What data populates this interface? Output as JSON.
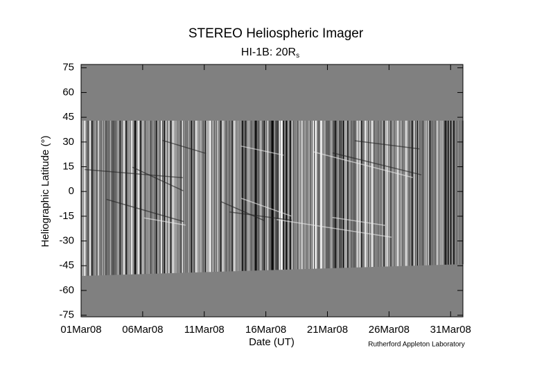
{
  "chart_data": {
    "type": "image",
    "title": "STEREO Heliospheric Imager",
    "subtitle": "HI-1B: 20R",
    "subtitle_sub": "s",
    "x_label": "Date (UT)",
    "y_label": "Heliographic Latitude (°)",
    "credit": "Rutherford Appleton Laboratory",
    "xlim": [
      "2008-03-01",
      "2008-04-01"
    ],
    "xticks": [
      {
        "value": "2008-03-01",
        "label": "01Mar08"
      },
      {
        "value": "2008-03-06",
        "label": "06Mar08"
      },
      {
        "value": "2008-03-11",
        "label": "11Mar08"
      },
      {
        "value": "2008-03-16",
        "label": "16Mar08"
      },
      {
        "value": "2008-03-21",
        "label": "21Mar08"
      },
      {
        "value": "2008-03-26",
        "label": "26Mar08"
      },
      {
        "value": "2008-03-31",
        "label": "31Mar08"
      }
    ],
    "ylim": [
      -76,
      77
    ],
    "yticks": [
      75,
      60,
      45,
      30,
      15,
      0,
      -15,
      -30,
      -45,
      -60,
      -75
    ]
  }
}
